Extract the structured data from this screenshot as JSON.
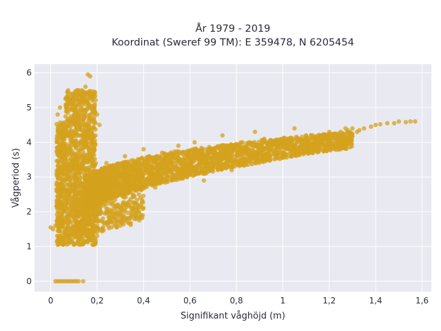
{
  "chart_data": {
    "type": "scatter",
    "title": "År 1979 - 2019",
    "subtitle": "Koordinat (Sweref 99 TM): E 359478, N 6205454",
    "xlabel": "Signifikant våghöjd (m)",
    "ylabel": "Vågperiod (s)",
    "xlim": [
      -0.07,
      1.64
    ],
    "ylim": [
      -0.3,
      6.25
    ],
    "x_ticks": [
      0,
      0.2,
      0.4,
      0.6,
      0.8,
      1,
      1.2,
      1.4,
      1.6
    ],
    "x_tick_labels": [
      "0",
      "0,2",
      "0,4",
      "0,6",
      "0,8",
      "1",
      "1,2",
      "1,4",
      "1,6"
    ],
    "y_ticks": [
      0,
      1,
      2,
      3,
      4,
      5,
      6
    ],
    "y_tick_labels": [
      "0",
      "1",
      "2",
      "3",
      "4",
      "5",
      "6"
    ],
    "grid": true,
    "legend": "none",
    "colors": {
      "marker": "#d4a21e",
      "plot_bg": "#e9e9f1",
      "grid": "#ffffff",
      "text": "#2a2a3a"
    },
    "series": [
      {
        "points": [
          [
            0.02,
            0
          ],
          [
            0.03,
            0
          ],
          [
            0.04,
            0
          ],
          [
            0.05,
            0
          ],
          [
            0.06,
            0
          ],
          [
            0.07,
            0
          ],
          [
            0.08,
            0
          ],
          [
            0.09,
            0
          ],
          [
            0.1,
            0
          ],
          [
            0.11,
            0
          ],
          [
            0.12,
            0
          ],
          [
            0.14,
            0
          ],
          [
            0.0,
            1.55
          ],
          [
            0.02,
            1.6
          ],
          [
            0.01,
            1.5
          ],
          [
            0.03,
            1.05
          ],
          [
            0.05,
            1.1
          ],
          [
            0.08,
            1.1
          ],
          [
            0.1,
            1.05
          ],
          [
            0.12,
            1.1
          ],
          [
            0.15,
            1.15
          ],
          [
            0.18,
            1.2
          ],
          [
            0.03,
            2.0
          ],
          [
            0.04,
            3.0
          ],
          [
            0.05,
            4.0
          ],
          [
            0.06,
            4.5
          ],
          [
            0.03,
            4.8
          ],
          [
            0.04,
            5.0
          ],
          [
            0.06,
            1.5
          ],
          [
            0.08,
            2.5
          ],
          [
            0.1,
            3.5
          ],
          [
            0.12,
            4.2
          ],
          [
            0.14,
            4.8
          ],
          [
            0.16,
            5.0
          ],
          [
            0.18,
            5.2
          ],
          [
            0.1,
            5.3
          ],
          [
            0.12,
            5.5
          ],
          [
            0.15,
            5.6
          ],
          [
            0.16,
            5.95
          ],
          [
            0.17,
            5.9
          ],
          [
            0.19,
            5.45
          ],
          [
            0.2,
            4.8
          ],
          [
            0.21,
            4.5
          ],
          [
            0.2,
            1.3
          ],
          [
            0.22,
            1.5
          ],
          [
            0.25,
            1.7
          ],
          [
            0.3,
            1.6
          ],
          [
            0.33,
            1.8
          ],
          [
            0.36,
            1.8
          ],
          [
            0.2,
            2.2
          ],
          [
            0.22,
            3.2
          ],
          [
            0.24,
            3.4
          ],
          [
            0.28,
            3.3
          ],
          [
            0.3,
            2.5
          ],
          [
            0.32,
            3.6
          ],
          [
            0.35,
            3.0
          ],
          [
            0.38,
            2.5
          ],
          [
            0.4,
            3.8
          ],
          [
            0.42,
            3.2
          ],
          [
            0.45,
            2.7
          ],
          [
            0.48,
            3.7
          ],
          [
            0.5,
            3.0
          ],
          [
            0.52,
            2.9
          ],
          [
            0.55,
            3.9
          ],
          [
            0.58,
            3.1
          ],
          [
            0.6,
            3.3
          ],
          [
            0.62,
            4.0
          ],
          [
            0.65,
            3.4
          ],
          [
            0.66,
            2.9
          ],
          [
            0.68,
            3.8
          ],
          [
            0.7,
            3.6
          ],
          [
            0.72,
            3.3
          ],
          [
            0.74,
            4.2
          ],
          [
            0.75,
            3.8
          ],
          [
            0.78,
            3.2
          ],
          [
            0.8,
            3.5
          ],
          [
            0.82,
            4.0
          ],
          [
            0.85,
            3.8
          ],
          [
            0.88,
            4.3
          ],
          [
            0.9,
            3.7
          ],
          [
            0.92,
            4.1
          ],
          [
            0.95,
            3.9
          ],
          [
            0.98,
            3.7
          ],
          [
            1.0,
            4.0
          ],
          [
            1.02,
            4.1
          ],
          [
            1.05,
            4.4
          ],
          [
            1.08,
            4.0
          ],
          [
            1.1,
            4.2
          ],
          [
            1.12,
            3.9
          ],
          [
            1.15,
            4.1
          ],
          [
            1.18,
            4.2
          ],
          [
            1.2,
            4.3
          ],
          [
            1.22,
            4.2
          ],
          [
            1.25,
            4.3
          ],
          [
            1.28,
            4.35
          ],
          [
            1.3,
            4.4
          ],
          [
            1.32,
            4.3
          ],
          [
            1.35,
            4.4
          ],
          [
            1.38,
            4.45
          ],
          [
            1.4,
            4.5
          ],
          [
            1.42,
            4.52
          ],
          [
            1.45,
            4.55
          ],
          [
            1.48,
            4.55
          ],
          [
            1.5,
            4.6
          ],
          [
            1.53,
            4.58
          ],
          [
            1.55,
            4.6
          ],
          [
            1.57,
            4.6
          ],
          [
            1.27,
            4.4
          ],
          [
            1.33,
            4.35
          ]
        ]
      }
    ]
  }
}
